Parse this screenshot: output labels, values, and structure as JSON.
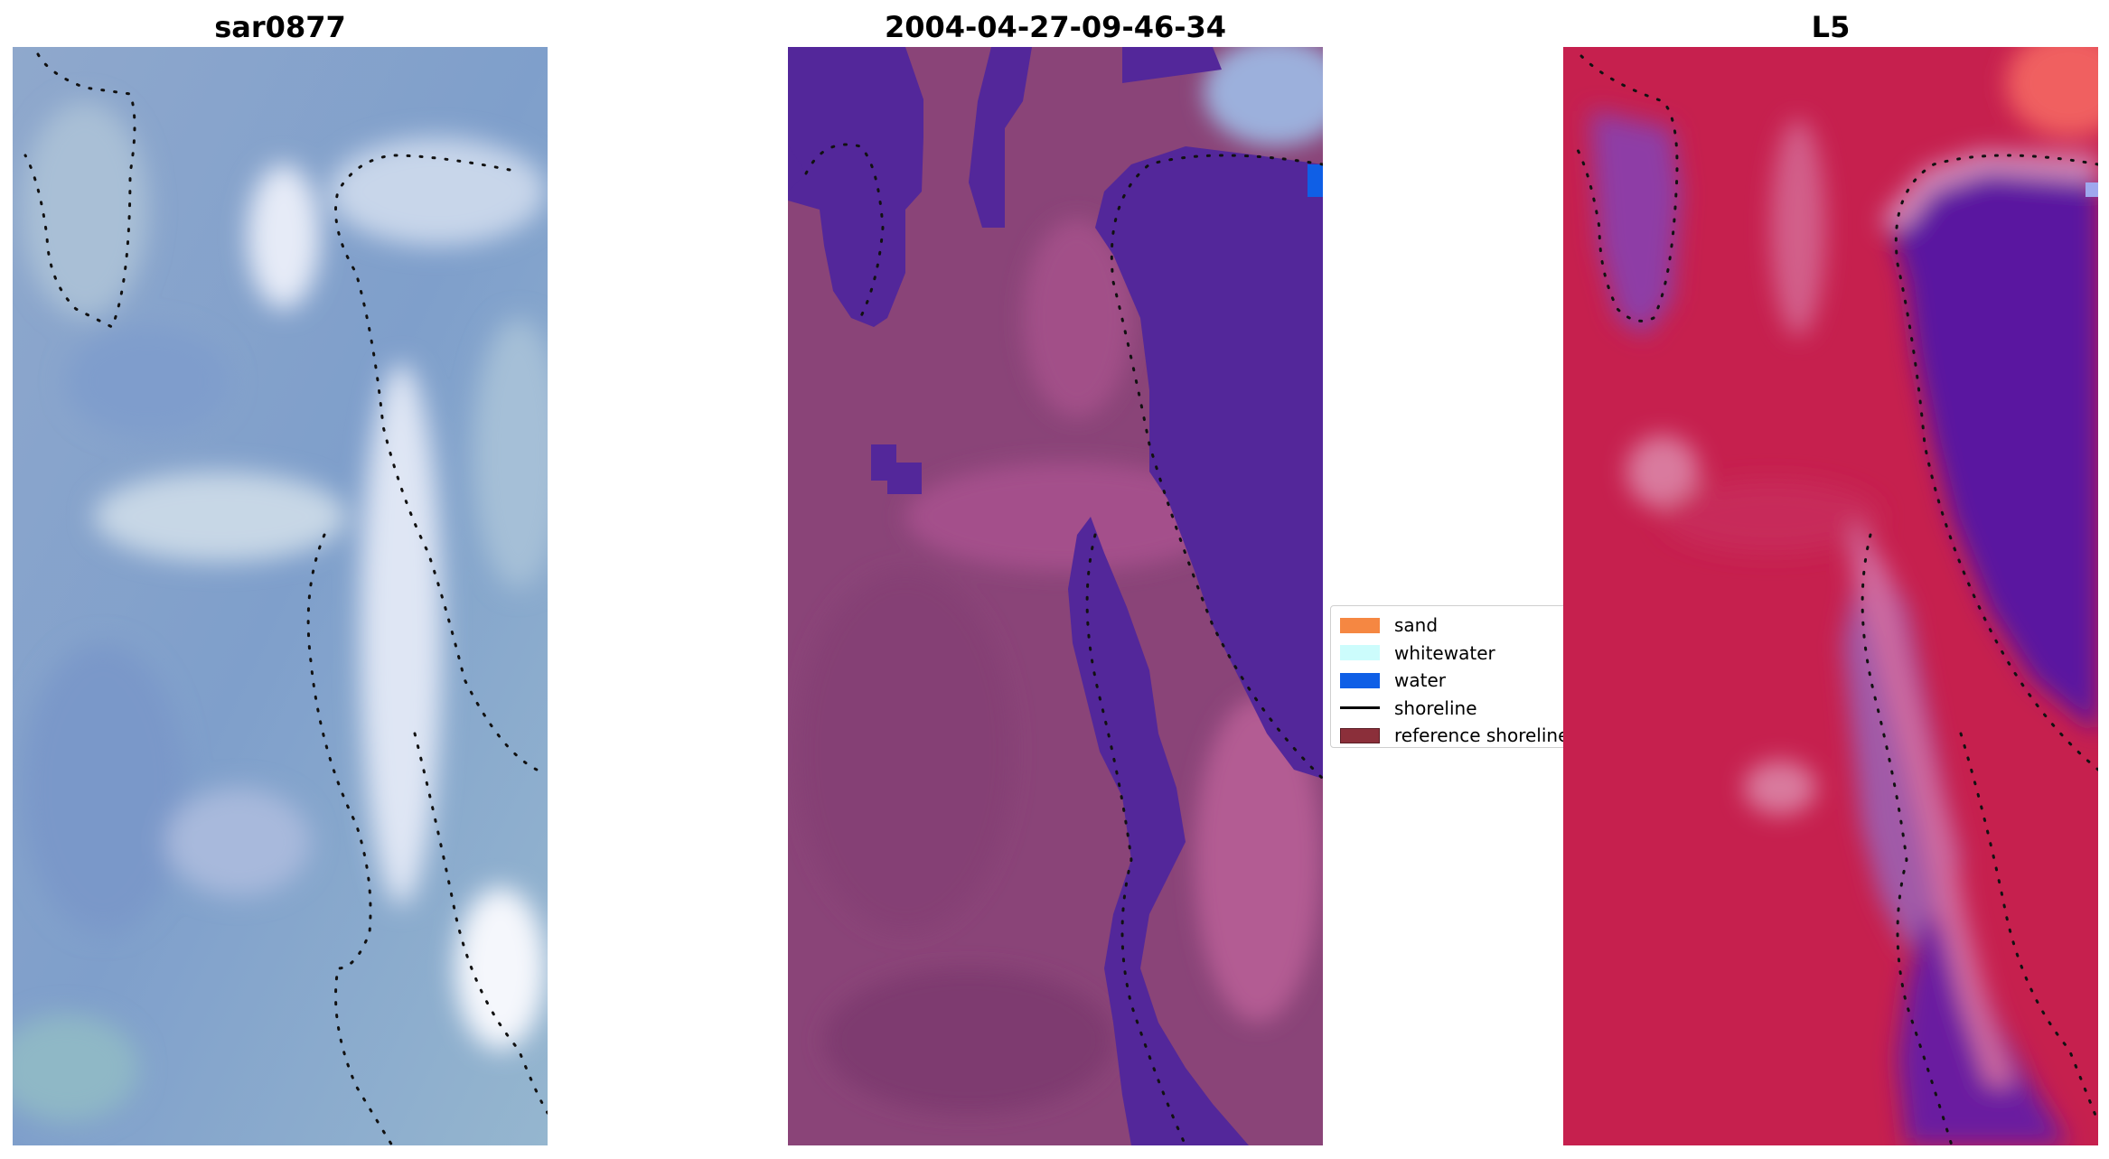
{
  "panels": [
    {
      "title": "sar0877",
      "colors": {
        "base": "#86a3c8",
        "light": "#e4e9f6",
        "teal": "#8ab8c8",
        "deep": "#6f8fc7"
      }
    },
    {
      "title": "2004-04-27-09-46-34",
      "colors": {
        "base": "#8a4478",
        "light": "#b35b93",
        "water": "#53279a",
        "blue": "#0f5fe6",
        "sky": "#9cb0dc"
      }
    },
    {
      "title": "L5",
      "colors": {
        "base": "#c6204e",
        "light": "#d96a96",
        "water": "#5a14a0",
        "violet": "#8e3ca6",
        "salmon": "#f06060"
      }
    }
  ],
  "legend": {
    "items": [
      {
        "label": "sand",
        "type": "patch",
        "color": "#f58742"
      },
      {
        "label": "whitewater",
        "type": "patch",
        "color": "#ccfcfc"
      },
      {
        "label": "water",
        "type": "patch",
        "color": "#0f5fe6"
      },
      {
        "label": "shoreline",
        "type": "line",
        "color": "#000000"
      },
      {
        "label": "reference shoreline",
        "type": "patch",
        "color": "#8b2f3a"
      }
    ]
  }
}
